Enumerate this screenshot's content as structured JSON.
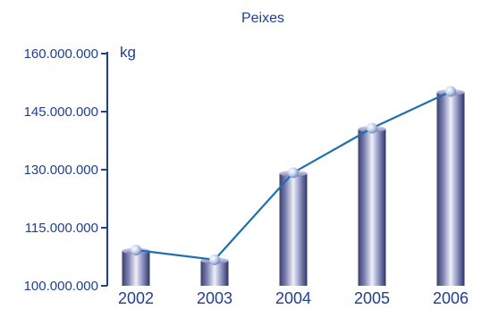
{
  "chart_data": {
    "type": "bar",
    "title": "Peixes",
    "unit_label": "kg",
    "categories": [
      "2002",
      "2003",
      "2004",
      "2005",
      "2006"
    ],
    "series": [
      {
        "values": [
          109000000,
          106500000,
          129000000,
          140500000,
          150000000
        ]
      }
    ],
    "line_overlay": true,
    "ylim": [
      100000000,
      160000000
    ],
    "yticks": [
      100000000,
      115000000,
      130000000,
      145000000,
      160000000
    ],
    "ytick_labels": [
      "100.000.000",
      "115.000.000",
      "130.000.000",
      "145.000.000",
      "160.000.000"
    ],
    "grid": false,
    "colors": {
      "text": "#1f3f8f",
      "axis": "#1f3f8f",
      "line": "#1f6fb0",
      "bar_dark": "#3a3f68",
      "bar_light": "#e8ebf7"
    }
  }
}
